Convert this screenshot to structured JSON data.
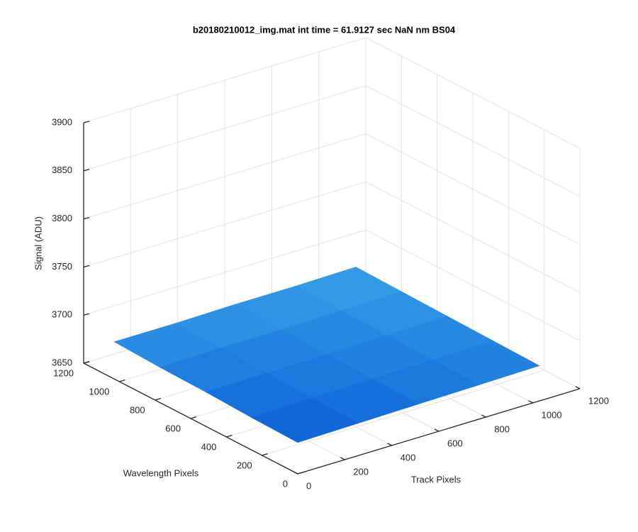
{
  "chart_data": {
    "type": "surface",
    "title": "b20180210012_img.mat int time = 61.9127 sec  NaN nm BS04",
    "xlabel": "Track Pixels",
    "ylabel": "Wavelength Pixels",
    "zlabel": "Signal (ADU)",
    "x": [
      0,
      256,
      512,
      768,
      1024
    ],
    "y": [
      0,
      256,
      512,
      768,
      1024
    ],
    "z": [
      [
        3683,
        3684,
        3685,
        3686,
        3687
      ],
      [
        3684,
        3685,
        3686,
        3687,
        3688
      ],
      [
        3686,
        3686,
        3687,
        3688,
        3689
      ],
      [
        3687,
        3688,
        3688,
        3689,
        3690
      ],
      [
        3689,
        3689,
        3690,
        3690,
        3691
      ]
    ],
    "xlim": [
      0,
      1200
    ],
    "ylim": [
      0,
      1200
    ],
    "zlim": [
      3650,
      3900
    ],
    "xticks": [
      0,
      200,
      400,
      600,
      800,
      1000,
      1200
    ],
    "yticks": [
      0,
      200,
      400,
      600,
      800,
      1000,
      1200
    ],
    "zticks": [
      3650,
      3700,
      3750,
      3800,
      3850,
      3900
    ],
    "grid": true,
    "colormap": [
      "#0b5ed6",
      "#3aa3e8"
    ]
  }
}
